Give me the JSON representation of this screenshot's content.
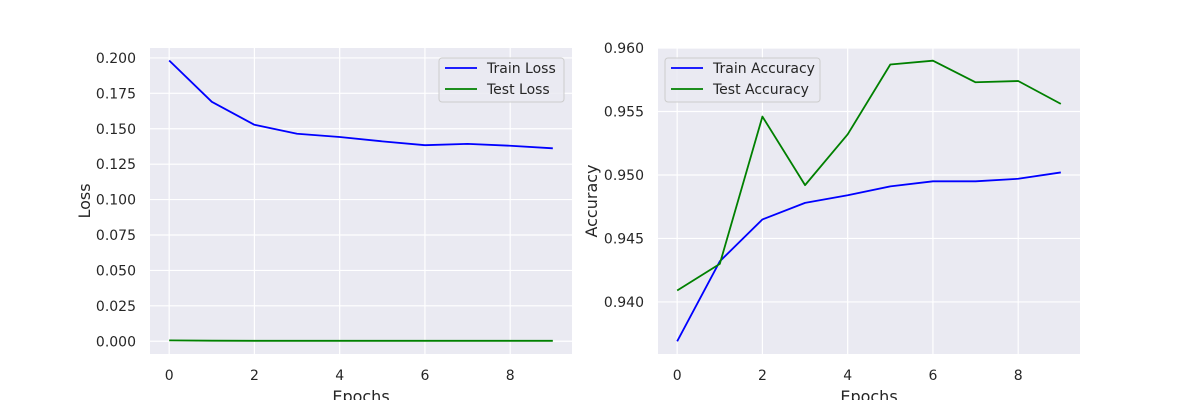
{
  "chart_data": [
    {
      "type": "line",
      "xlabel": "Epochs",
      "ylabel": "Loss",
      "xlim": [
        -0.45,
        9.45
      ],
      "ylim": [
        -0.009,
        0.207
      ],
      "xticks": [
        0,
        2,
        4,
        6,
        8
      ],
      "yticks": [
        0.0,
        0.025,
        0.05,
        0.075,
        0.1,
        0.125,
        0.15,
        0.175,
        0.2
      ],
      "ytick_labels": [
        "0.000",
        "0.025",
        "0.050",
        "0.075",
        "0.100",
        "0.125",
        "0.150",
        "0.175",
        "0.200"
      ],
      "grid": true,
      "legend_position": "top-right",
      "x": [
        0,
        1,
        2,
        3,
        4,
        5,
        6,
        7,
        8,
        9
      ],
      "series": [
        {
          "name": "Train Loss",
          "color": "#0000ff",
          "values": [
            0.1982,
            0.169,
            0.1528,
            0.1465,
            0.1442,
            0.1411,
            0.1384,
            0.1393,
            0.138,
            0.1362
          ]
        },
        {
          "name": "Test Loss",
          "color": "#008000",
          "values": [
            0.0006,
            0.0004,
            0.0003,
            0.0003,
            0.0003,
            0.0003,
            0.0003,
            0.0003,
            0.0003,
            0.0003
          ]
        }
      ]
    },
    {
      "type": "line",
      "xlabel": "Epochs",
      "ylabel": "Accuracy",
      "xlim": [
        -0.45,
        9.45
      ],
      "ylim": [
        0.9359,
        0.96
      ],
      "xticks": [
        0,
        2,
        4,
        6,
        8
      ],
      "yticks": [
        0.94,
        0.945,
        0.95,
        0.955,
        0.96
      ],
      "ytick_labels": [
        "0.940",
        "0.945",
        "0.950",
        "0.955",
        "0.960"
      ],
      "grid": true,
      "legend_position": "top-left",
      "x": [
        0,
        1,
        2,
        3,
        4,
        5,
        6,
        7,
        8,
        9
      ],
      "series": [
        {
          "name": "Train Accuracy",
          "color": "#0000ff",
          "values": [
            0.9369,
            0.9432,
            0.9465,
            0.9478,
            0.9484,
            0.9491,
            0.9495,
            0.9495,
            0.9497,
            0.9502
          ]
        },
        {
          "name": "Test Accuracy",
          "color": "#008000",
          "values": [
            0.9409,
            0.943,
            0.9546,
            0.9492,
            0.9532,
            0.9587,
            0.959,
            0.9573,
            0.9574,
            0.9556
          ]
        }
      ]
    }
  ],
  "colors": {
    "plot_background": "#eaeaf2",
    "grid": "#ffffff",
    "legend_frame": "#cccccc"
  }
}
